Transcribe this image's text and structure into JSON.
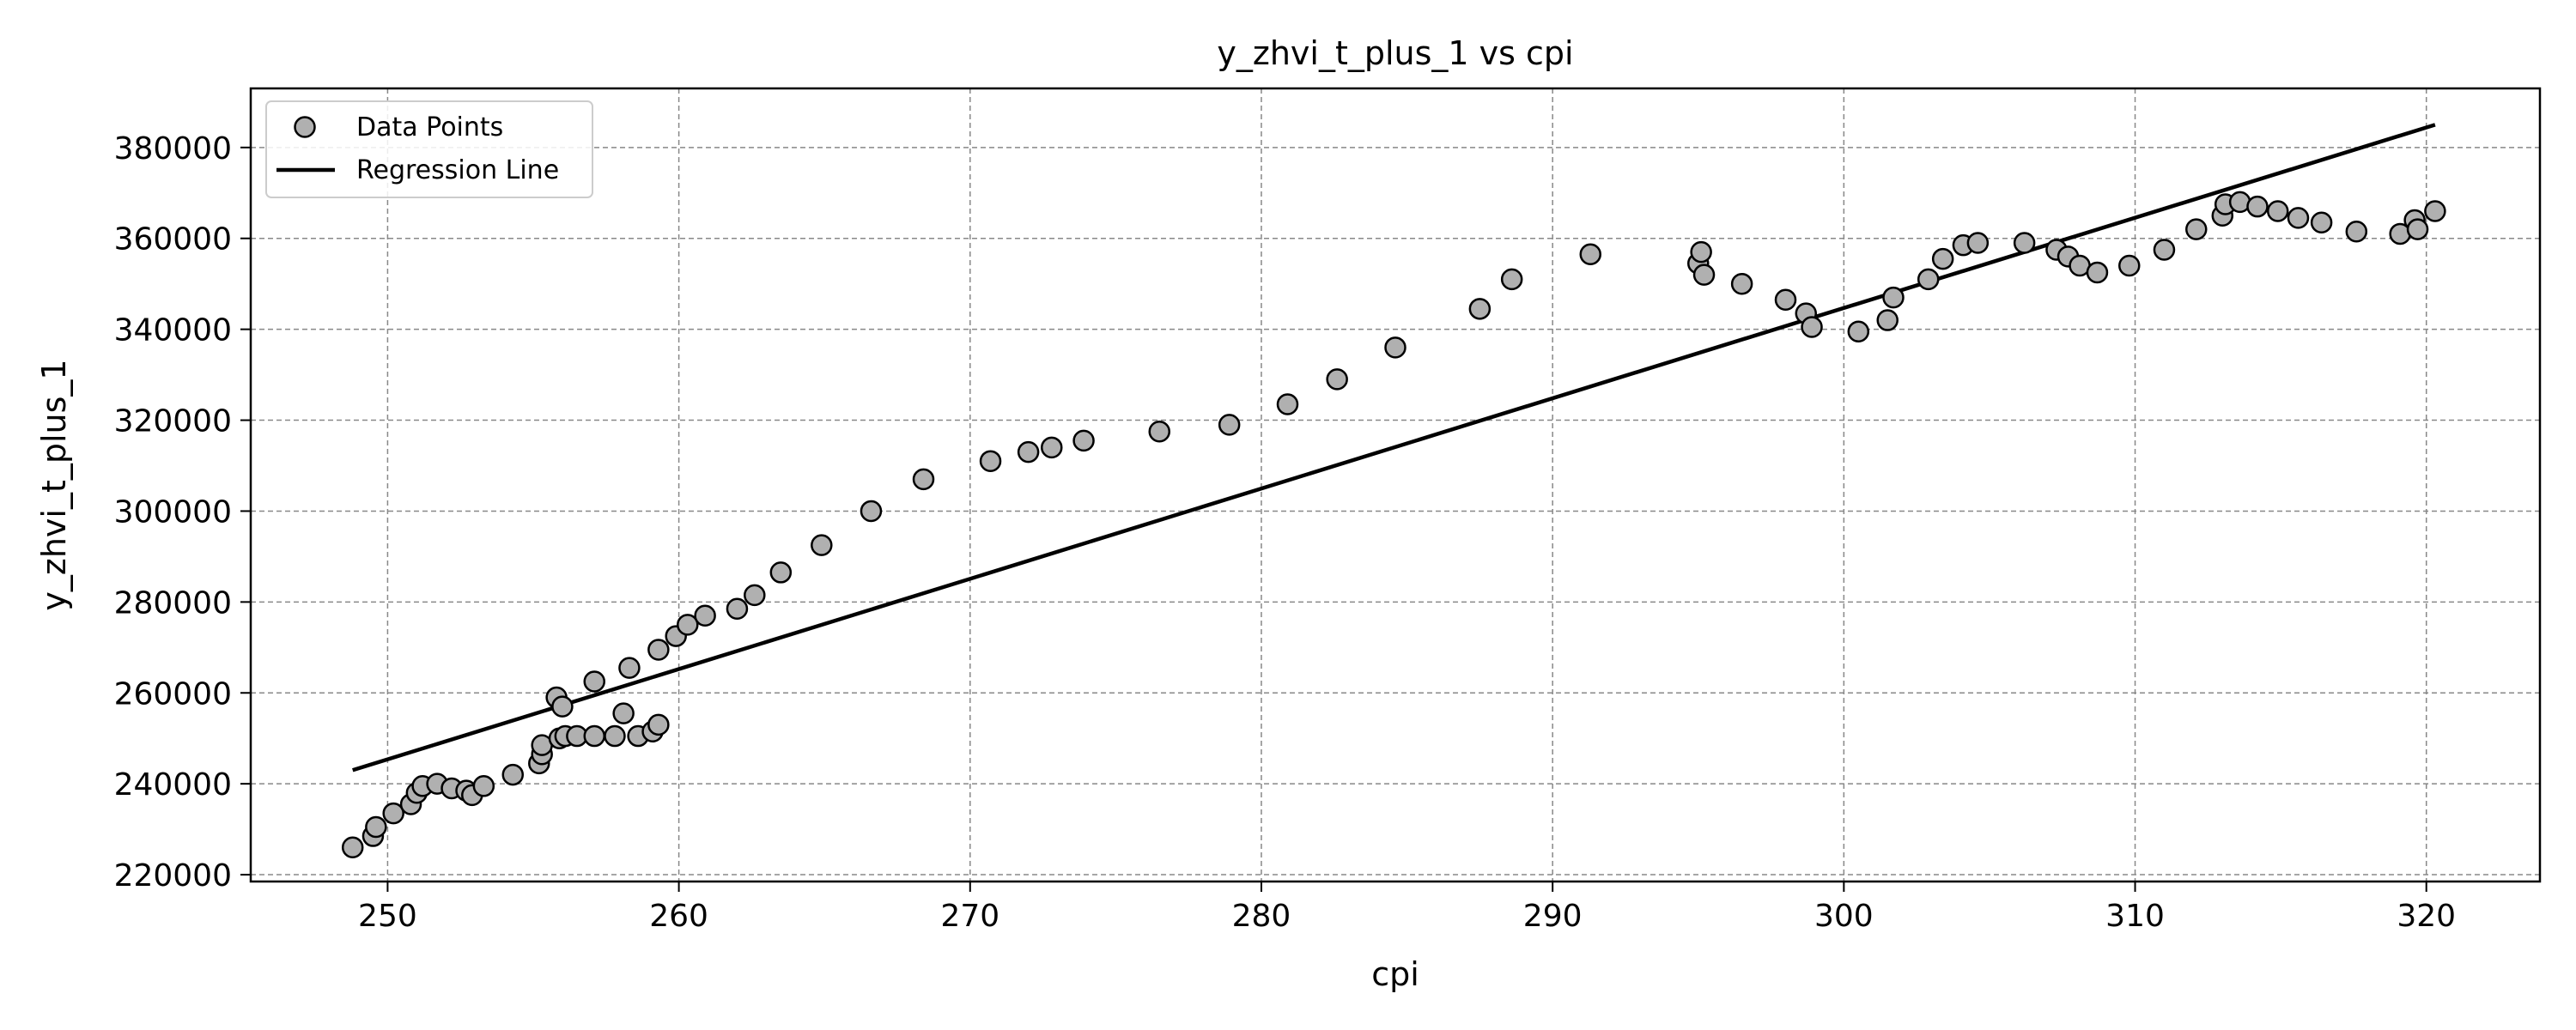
{
  "chart_data": {
    "type": "scatter",
    "title": "y_zhvi_t_plus_1 vs cpi",
    "xlabel": "cpi",
    "ylabel": "y_zhvi_t_plus_1",
    "xlim": [
      245.3,
      323.9
    ],
    "ylim": [
      218500,
      393000
    ],
    "xticks": [
      250,
      260,
      270,
      280,
      290,
      300,
      310,
      320
    ],
    "yticks": [
      220000,
      240000,
      260000,
      280000,
      300000,
      320000,
      340000,
      360000,
      380000
    ],
    "grid": true,
    "legend_position": "top-left",
    "legend": [
      "Data Points",
      "Regression Line"
    ],
    "colors": {
      "points_fill": "#b0b0b0",
      "points_edge": "#000000",
      "line": "#000000",
      "grid": "#888888"
    },
    "series": [
      {
        "name": "Data Points",
        "kind": "scatter",
        "x": [
          248.8,
          249.5,
          249.6,
          250.2,
          250.8,
          251.0,
          251.2,
          251.7,
          252.2,
          252.7,
          252.9,
          253.3,
          254.3,
          255.2,
          255.3,
          255.3,
          255.8,
          255.9,
          256.0,
          256.1,
          256.5,
          257.1,
          257.1,
          257.8,
          258.1,
          258.3,
          258.6,
          259.1,
          259.3,
          259.3,
          259.9,
          260.3,
          260.9,
          262.0,
          262.6,
          263.5,
          264.9,
          266.6,
          268.4,
          270.7,
          272.0,
          272.8,
          273.9,
          276.5,
          278.9,
          280.9,
          282.6,
          284.6,
          287.5,
          288.6,
          291.3,
          295.0,
          295.1,
          295.2,
          296.5,
          298.0,
          298.7,
          298.9,
          300.5,
          301.5,
          301.7,
          302.9,
          303.4,
          304.1,
          304.6,
          306.2,
          307.3,
          307.7,
          308.1,
          308.7,
          309.8,
          311.0,
          312.1,
          313.0,
          313.1,
          313.6,
          314.2,
          314.9,
          315.6,
          316.4,
          317.6,
          319.1,
          319.6,
          319.7,
          320.3
        ],
        "y": [
          226000,
          228500,
          230500,
          233500,
          235500,
          238000,
          239500,
          240000,
          239000,
          238500,
          237500,
          239500,
          242000,
          244500,
          246500,
          248500,
          259000,
          250000,
          257000,
          250500,
          250500,
          262500,
          250500,
          250500,
          255500,
          265500,
          250500,
          251500,
          253000,
          269500,
          272500,
          275000,
          277000,
          278500,
          281500,
          286500,
          292500,
          300000,
          307000,
          311000,
          313000,
          314000,
          315500,
          317500,
          319000,
          323500,
          329000,
          336000,
          344500,
          351000,
          356500,
          354500,
          357000,
          352000,
          350000,
          346500,
          343500,
          340500,
          339500,
          342000,
          347000,
          351000,
          355500,
          358500,
          359000,
          359000,
          357500,
          356000,
          354000,
          352500,
          354000,
          357500,
          362000,
          365000,
          367500,
          368000,
          367000,
          366000,
          364500,
          363500,
          361500,
          361000,
          364000,
          362000,
          366000
        ]
      },
      {
        "name": "Regression Line",
        "kind": "line",
        "x": [
          248.8,
          320.3
        ],
        "y": [
          243000,
          385000
        ]
      }
    ]
  }
}
